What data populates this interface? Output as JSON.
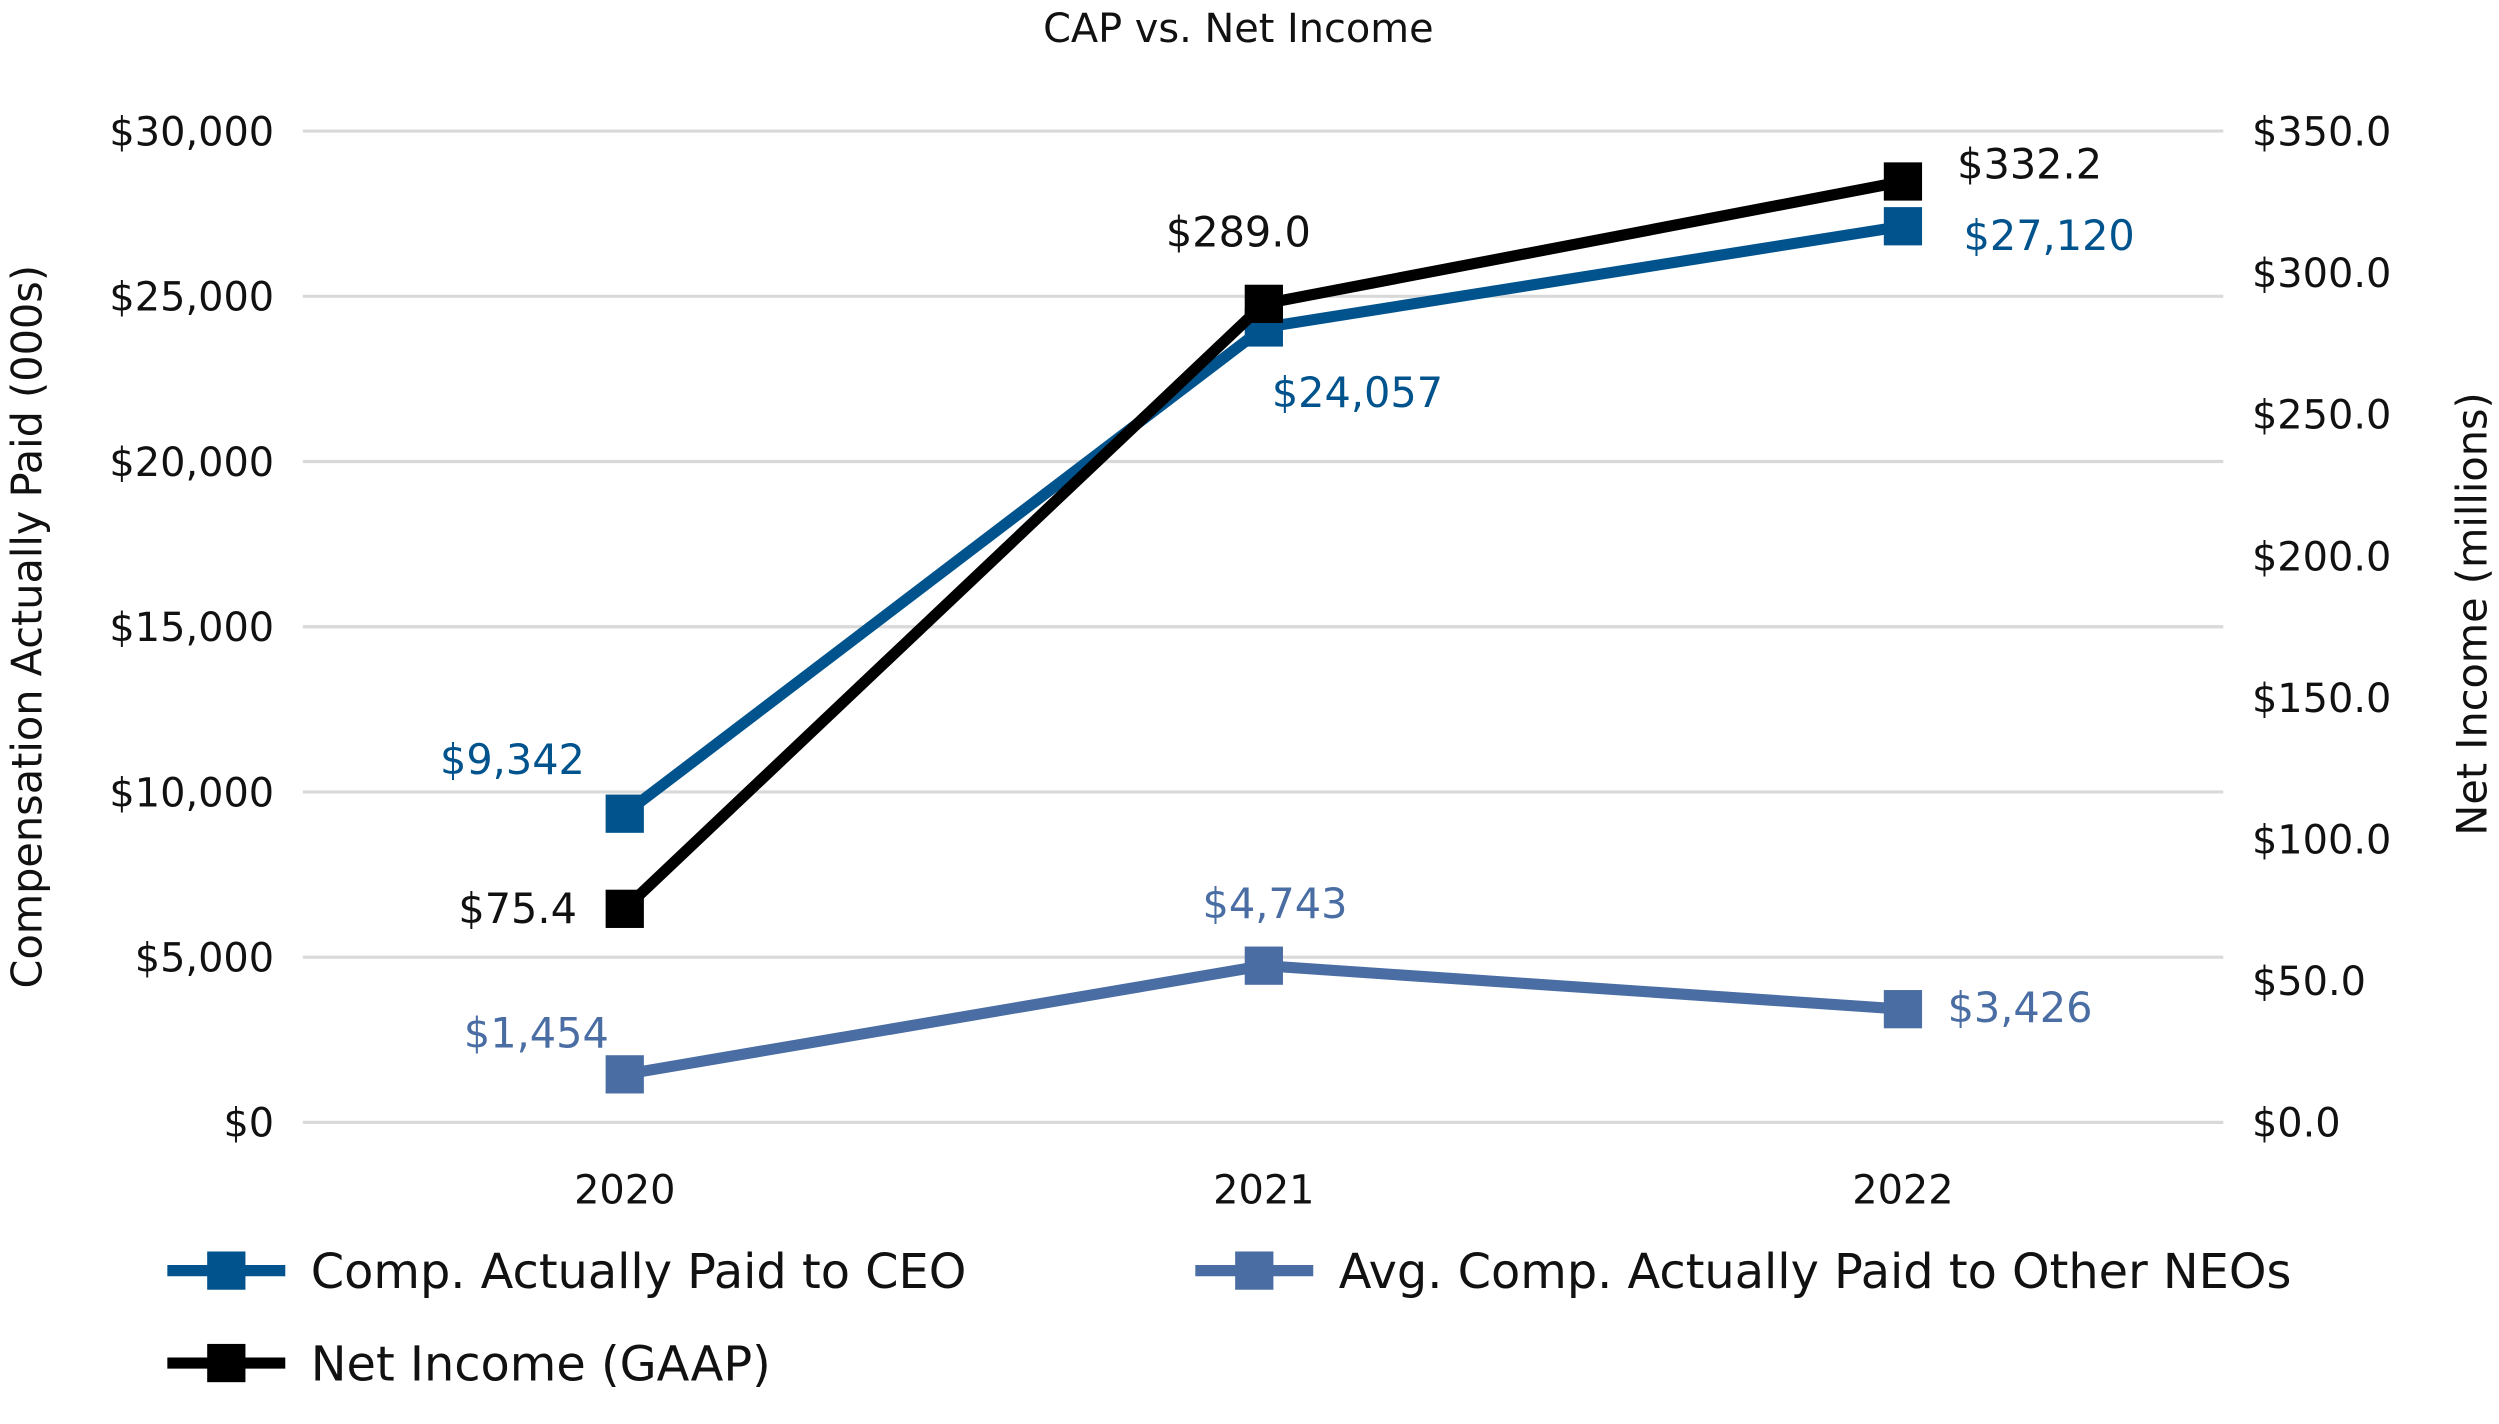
{
  "chart_data": {
    "type": "line",
    "title": "CAP vs. Net Income",
    "categories": [
      "2020",
      "2021",
      "2022"
    ],
    "y_left": {
      "label": "Compensation Actually Paid (000s)",
      "range": [
        0,
        30000
      ],
      "ticks": [
        "$0",
        "$5,000",
        "$10,000",
        "$15,000",
        "$20,000",
        "$25,000",
        "$30,000"
      ]
    },
    "y_right": {
      "label": "Net Income (millions)",
      "range": [
        0,
        350
      ],
      "ticks": [
        "$0.0",
        "$50.0",
        "$100.0",
        "$150.0",
        "$200.0",
        "$250.0",
        "$300.0",
        "$350.0"
      ]
    },
    "grid": true,
    "legend_position": "bottom",
    "series": [
      {
        "name": "Comp. Actually Paid to CEO",
        "axis": "left",
        "color": "#00538C",
        "values": [
          9342,
          24057,
          27120
        ],
        "labels": [
          "$9,342",
          "$24,057",
          "$27,120"
        ]
      },
      {
        "name": "Avg. Comp. Actually Paid to Other NEOs",
        "axis": "left",
        "color": "#4A6DA3",
        "values": [
          1454,
          4743,
          3426
        ],
        "labels": [
          "$1,454",
          "$4,743",
          "$3,426"
        ]
      },
      {
        "name": "Net Income (GAAP)",
        "axis": "right",
        "color": "#000000",
        "values": [
          75.4,
          289.0,
          332.2
        ],
        "labels": [
          "$75.4",
          "$289.0",
          "$332.2"
        ]
      }
    ]
  }
}
